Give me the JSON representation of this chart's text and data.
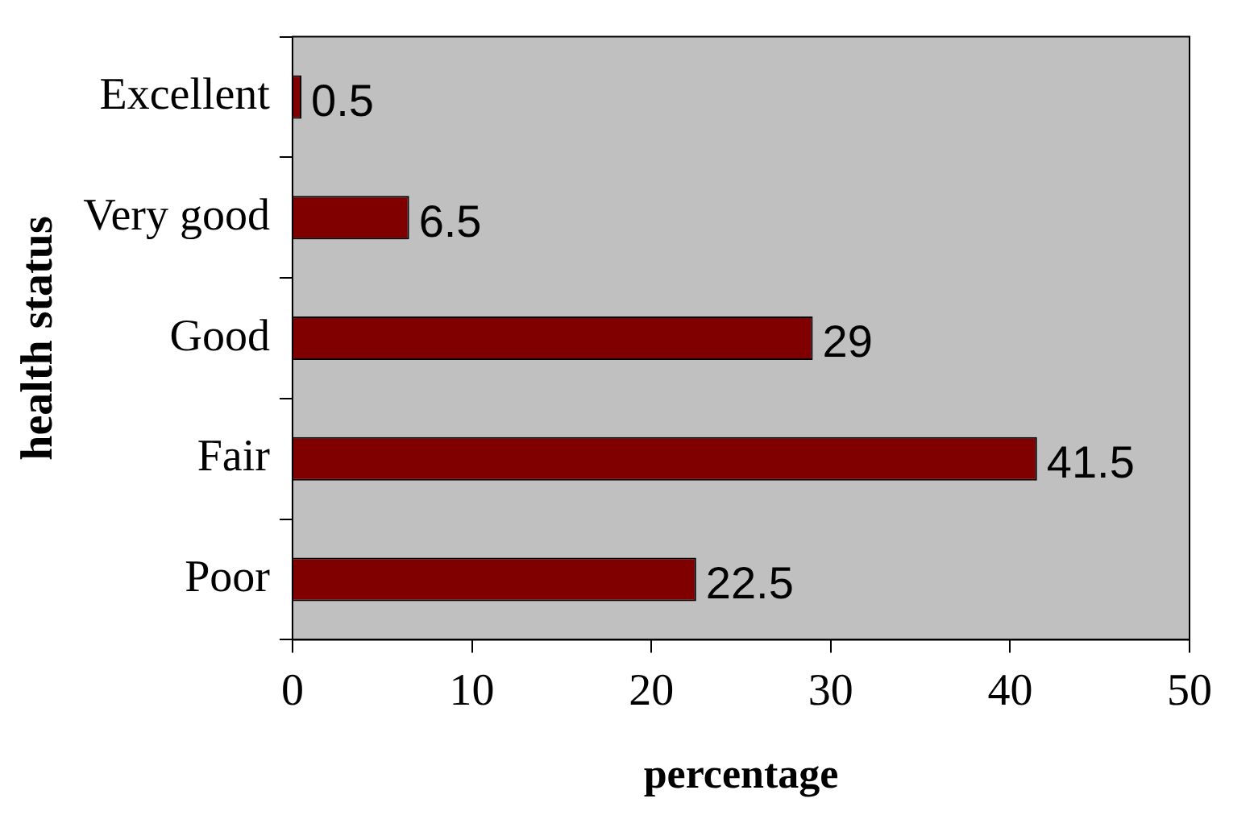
{
  "chart_data": {
    "type": "bar",
    "orientation": "horizontal",
    "xlabel": "percentage",
    "ylabel": "health status",
    "categories": [
      "Excellent",
      "Very good",
      "Good",
      "Fair",
      "Poor"
    ],
    "values": [
      0.5,
      6.5,
      29,
      41.5,
      22.5
    ],
    "color": "#800000",
    "xlim": [
      0,
      50
    ],
    "xticks": [
      0,
      10,
      20,
      30,
      40,
      50
    ],
    "grid": false,
    "legend": false,
    "data_labels": true
  }
}
